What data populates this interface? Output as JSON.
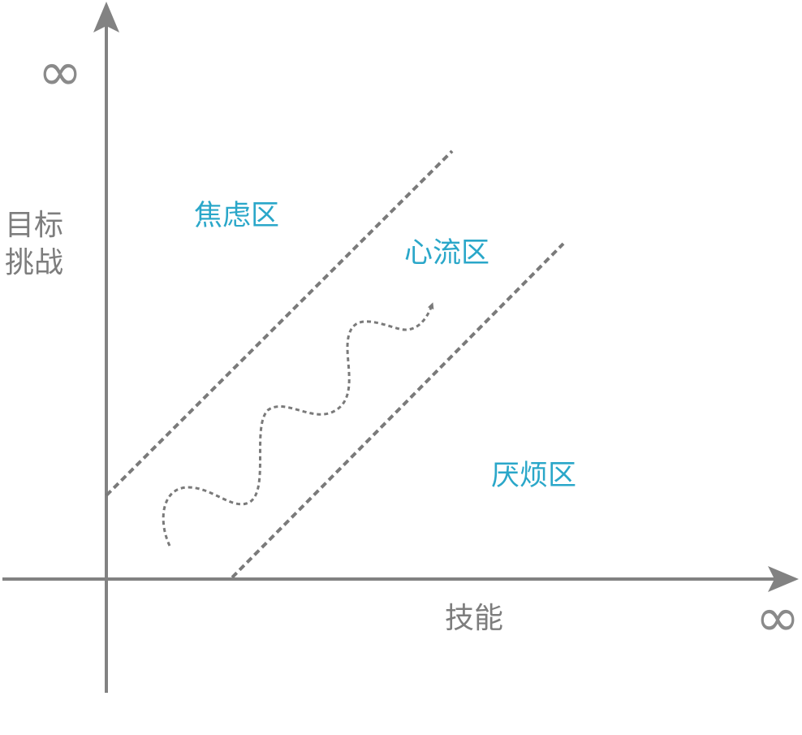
{
  "colors": {
    "axis": "#828282",
    "dash": "#7a7a7a",
    "axis_label": "#7d7d7d",
    "zone_label": "#2aa7c9"
  },
  "axes": {
    "y_label_line1": "目标",
    "y_label_line2": "挑战",
    "x_label": "技能",
    "y_infinity": "∞",
    "x_infinity": "∞"
  },
  "zones": {
    "anxiety": "焦虑区",
    "flow": "心流区",
    "boredom": "厌烦区"
  }
}
